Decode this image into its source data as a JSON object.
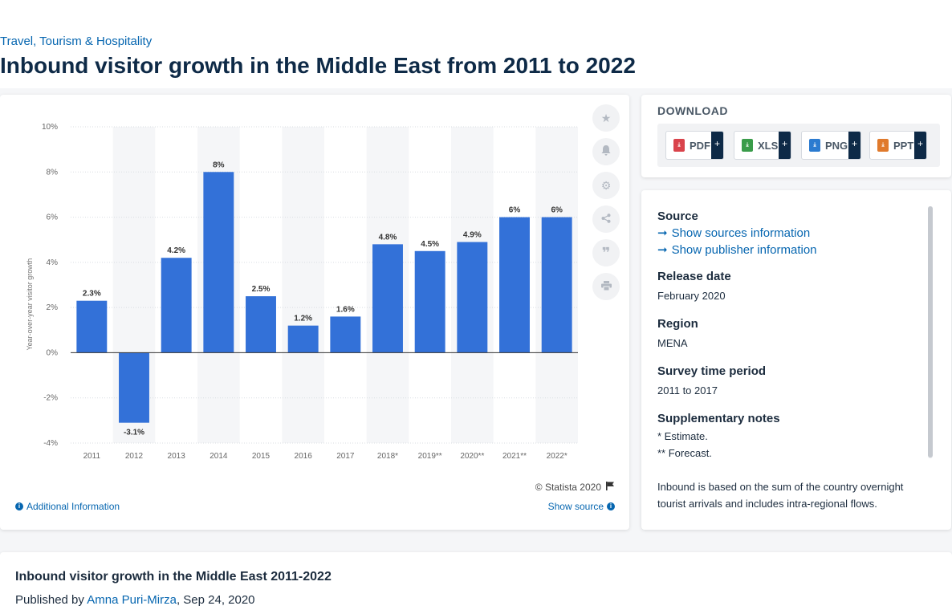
{
  "breadcrumb": "Travel, Tourism & Hospitality",
  "page_title": "Inbound visitor growth in the Middle East from 2011 to 2022",
  "colors": {
    "bar": "#3371d8",
    "band": "#f5f6f8",
    "accent_link": "#0666b0",
    "title": "#0e2a47"
  },
  "chart_data": {
    "type": "bar",
    "categories": [
      "2011",
      "2012",
      "2013",
      "2014",
      "2015",
      "2016",
      "2017",
      "2018*",
      "2019**",
      "2020**",
      "2021**",
      "2022*"
    ],
    "values": [
      2.3,
      -3.1,
      4.2,
      8,
      2.5,
      1.2,
      1.6,
      4.8,
      4.5,
      4.9,
      6,
      6
    ],
    "data_labels": [
      "2.3%",
      "-3.1%",
      "4.2%",
      "8%",
      "2.5%",
      "1.2%",
      "1.6%",
      "4.8%",
      "4.5%",
      "4.9%",
      "6%",
      "6%"
    ],
    "ylabel": "Year-over-year visitor growth",
    "ylim": [
      -4,
      10
    ],
    "yticks": [
      -4,
      -2,
      0,
      2,
      4,
      6,
      8,
      10
    ],
    "ytick_labels": [
      "-4%",
      "-2%",
      "0%",
      "2%",
      "4%",
      "6%",
      "8%",
      "10%"
    ],
    "grid": true,
    "legend": "none"
  },
  "chart_footer": {
    "copyright": "© Statista 2020",
    "additional_info": "Additional Information",
    "show_source": "Show source"
  },
  "tools": [
    "star-icon",
    "bell-icon",
    "gear-icon",
    "share-icon",
    "quote-icon",
    "print-icon"
  ],
  "download": {
    "title": "DOWNLOAD",
    "buttons": [
      {
        "label": "PDF",
        "icon": "pdf-icon",
        "color": "#d9434b"
      },
      {
        "label": "XLS",
        "icon": "xls-icon",
        "color": "#3a9c4a"
      },
      {
        "label": "PNG",
        "icon": "png-icon",
        "color": "#2b7bd0"
      },
      {
        "label": "PPT",
        "icon": "ppt-icon",
        "color": "#e07a2c"
      }
    ],
    "plus": "+"
  },
  "info": {
    "source_heading": "Source",
    "sources_link": "Show sources information",
    "publisher_link": "Show publisher information",
    "release_heading": "Release date",
    "release_value": "February 2020",
    "region_heading": "Region",
    "region_value": "MENA",
    "survey_heading": "Survey time period",
    "survey_value": "2011 to 2017",
    "notes_heading": "Supplementary notes",
    "notes_line1": "* Estimate.",
    "notes_line2": "** Forecast.",
    "notes_paragraph": "Inbound is based on the sum of the country overnight tourist arrivals and includes intra-regional flows."
  },
  "publication": {
    "title": "Inbound visitor growth in the Middle East 2011-2022",
    "published_by": "Published by",
    "author": "Amna Puri-Mirza",
    "date": ", Sep 24, 2020"
  }
}
